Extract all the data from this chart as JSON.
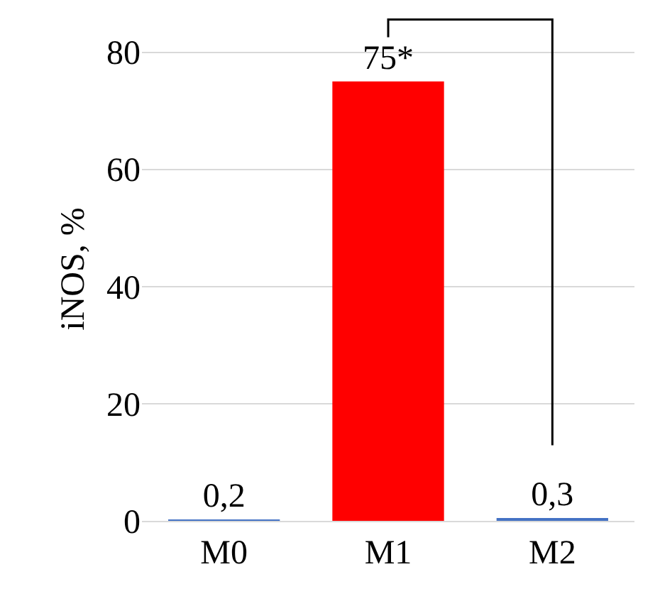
{
  "chart_data": {
    "type": "bar",
    "ylabel": "iNOS, %",
    "categories": [
      "M0",
      "M1",
      "M2"
    ],
    "values": [
      0.2,
      75,
      0.3
    ],
    "colors": [
      "#4472c4",
      "#ff0000",
      "#4472c4"
    ],
    "value_labels": [
      "0,2",
      "75*",
      "0,3"
    ],
    "ylim": [
      0,
      86
    ],
    "yticks": [
      0,
      20,
      40,
      60,
      80
    ],
    "grid": "y"
  }
}
